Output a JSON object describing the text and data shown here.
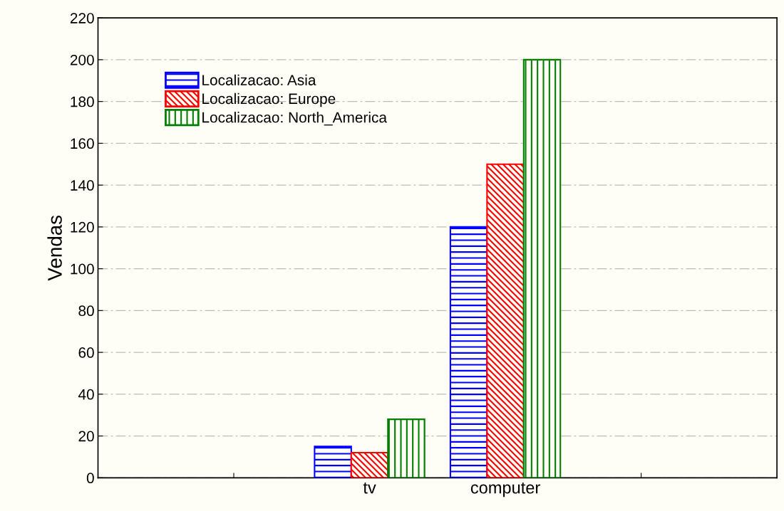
{
  "chart_data": {
    "type": "bar",
    "ylabel": "Vendas",
    "categories": [
      null,
      "tv",
      "computer",
      null
    ],
    "series": [
      {
        "name": "Localizacao: Asia",
        "color": "#0000ff",
        "values": [
          null,
          15,
          120,
          null
        ]
      },
      {
        "name": "Localizacao: Europe",
        "color": "#ff0000",
        "values": [
          null,
          12,
          150,
          null
        ]
      },
      {
        "name": "Localizacao: North_America",
        "color": "#007f00",
        "values": [
          null,
          28,
          200,
          null
        ]
      }
    ],
    "ylim": [
      0,
      220
    ],
    "yticks": [
      0,
      20,
      40,
      60,
      80,
      100,
      120,
      140,
      160,
      180,
      200,
      220
    ],
    "grid": "y",
    "legend": "top left"
  }
}
